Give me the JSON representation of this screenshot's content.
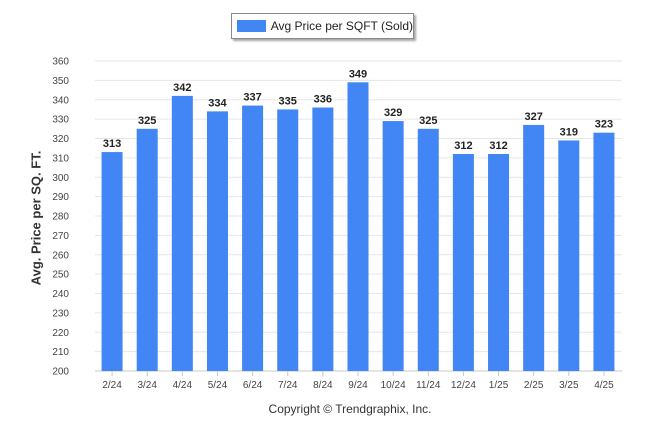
{
  "chart_data": {
    "type": "bar",
    "categories": [
      "2/24",
      "3/24",
      "4/24",
      "5/24",
      "6/24",
      "7/24",
      "8/24",
      "9/24",
      "10/24",
      "11/24",
      "12/24",
      "1/25",
      "2/25",
      "3/25",
      "4/25"
    ],
    "series": [
      {
        "name": "Avg Price per SQFT (Sold)",
        "values": [
          313,
          325,
          342,
          334,
          337,
          335,
          336,
          349,
          329,
          325,
          312,
          312,
          327,
          319,
          323
        ]
      }
    ],
    "title": "",
    "xlabel": "Copyright © Trendgraphix, Inc.",
    "ylabel": "Avg. Price per SQ. FT.",
    "ylim": [
      200,
      360
    ],
    "yticks": [
      200,
      210,
      220,
      230,
      240,
      250,
      260,
      270,
      280,
      290,
      300,
      310,
      320,
      330,
      340,
      350,
      360
    ],
    "grid": true,
    "legend_position": "top-center",
    "bar_color": "#4285f4",
    "data_labels": true
  }
}
